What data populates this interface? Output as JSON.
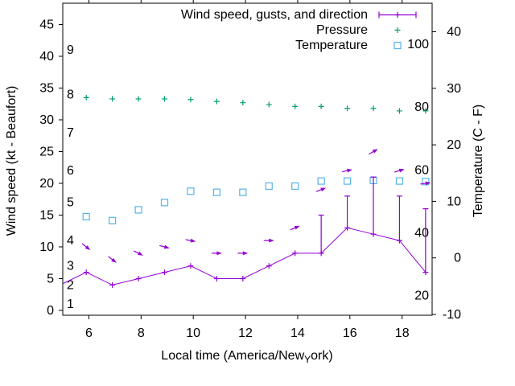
{
  "chart_data": {
    "type": "line",
    "title": "",
    "background": "#ffffff",
    "grid": false,
    "legend": {
      "position": "top-right-inside",
      "entries": [
        {
          "label": "Wind speed, gusts, and direction",
          "color": "#9400d3",
          "marker": "errorbar-plus"
        },
        {
          "label": "Pressure",
          "color": "#009e73",
          "marker": "plus"
        },
        {
          "label": "Temperature",
          "color": "#56b4e9",
          "marker": "open-square"
        }
      ]
    },
    "x_axis": {
      "label": "Local time (America/New_York)",
      "label_rendered": {
        "prefix": "Local time (America/New",
        "subscript": "Y",
        "suffix": "ork)"
      },
      "range": [
        5.0,
        19.15
      ],
      "ticks": [
        6,
        8,
        10,
        12,
        14,
        16,
        18
      ]
    },
    "y_axis_left": {
      "label": "Wind speed (kt - Beaufort)",
      "units": "kt",
      "range": [
        -0.8,
        48.3
      ],
      "ticks": [
        0,
        5,
        10,
        15,
        20,
        25,
        30,
        35,
        40,
        45
      ],
      "beaufort_scale_labels": [
        {
          "beaufort": "1",
          "kt": 1
        },
        {
          "beaufort": "2",
          "kt": 4
        },
        {
          "beaufort": "3",
          "kt": 7
        },
        {
          "beaufort": "4",
          "kt": 11
        },
        {
          "beaufort": "5",
          "kt": 17
        },
        {
          "beaufort": "6",
          "kt": 22
        },
        {
          "beaufort": "7",
          "kt": 28
        },
        {
          "beaufort": "8",
          "kt": 34
        },
        {
          "beaufort": "9",
          "kt": 41
        }
      ]
    },
    "y_axis_right": {
      "label": "Temperature (C - F)",
      "units_outer": "C",
      "units_inner": "F",
      "range_celsius": [
        -10.1,
        45.0
      ],
      "ticks_celsius": [
        -10,
        0,
        10,
        20,
        30,
        40
      ],
      "fahrenheit_scale_labels": [
        20,
        40,
        60,
        80,
        100
      ]
    },
    "series": {
      "wind": {
        "name": "Wind speed, gusts, and direction",
        "color": "#9400d3",
        "axis": "left",
        "style": "line-with-plus-markers-and-gust-errorbars",
        "x": [
          4.9,
          5.9,
          6.9,
          7.9,
          8.9,
          9.9,
          10.9,
          11.9,
          12.9,
          13.9,
          14.9,
          15.9,
          16.9,
          17.9,
          18.9
        ],
        "speed_kt": [
          4,
          6,
          4,
          5,
          6,
          7,
          5,
          5,
          7,
          9,
          9,
          13,
          12,
          11,
          6
        ],
        "gust_kt": [
          null,
          null,
          null,
          null,
          null,
          null,
          null,
          null,
          null,
          null,
          15,
          18,
          21,
          18,
          16
        ]
      },
      "wind_direction_arrows": {
        "color": "#9400d3",
        "axis": "left",
        "x": [
          5.9,
          6.9,
          7.9,
          8.9,
          9.9,
          10.9,
          11.9,
          12.9,
          13.9,
          14.9,
          15.9,
          16.9,
          17.9,
          18.9
        ],
        "y_kt": [
          10,
          8,
          9,
          10,
          11,
          9,
          9,
          11,
          13,
          19,
          22,
          25,
          22,
          20
        ],
        "angle_deg_up_from_east": [
          -38,
          -38,
          -26,
          -15,
          -10,
          0,
          0,
          0,
          23,
          21,
          12,
          30,
          17,
          8
        ]
      },
      "pressure": {
        "name": "Pressure",
        "color": "#009e73",
        "marker": "plus",
        "axis": "left-plot-units",
        "x": [
          5.9,
          6.9,
          7.9,
          8.9,
          9.9,
          10.9,
          11.9,
          12.9,
          13.9,
          14.9,
          15.9,
          16.9,
          17.9,
          18.9
        ],
        "y_plotted_kt_scale": [
          33.5,
          33.3,
          33.3,
          33.3,
          33.2,
          32.9,
          32.7,
          32.4,
          32.1,
          32.1,
          31.8,
          31.8,
          31.4,
          31.4
        ]
      },
      "temperature": {
        "name": "Temperature",
        "color": "#56b4e9",
        "marker": "open-square",
        "axis": "right",
        "x": [
          5.9,
          6.9,
          7.9,
          8.9,
          9.9,
          10.9,
          11.9,
          12.9,
          13.9,
          14.9,
          15.9,
          16.9,
          17.9,
          18.9
        ],
        "celsius": [
          7.3,
          6.6,
          8.5,
          9.8,
          11.8,
          11.6,
          11.6,
          12.7,
          12.7,
          13.6,
          13.6,
          13.7,
          13.6,
          13.5
        ]
      }
    }
  }
}
